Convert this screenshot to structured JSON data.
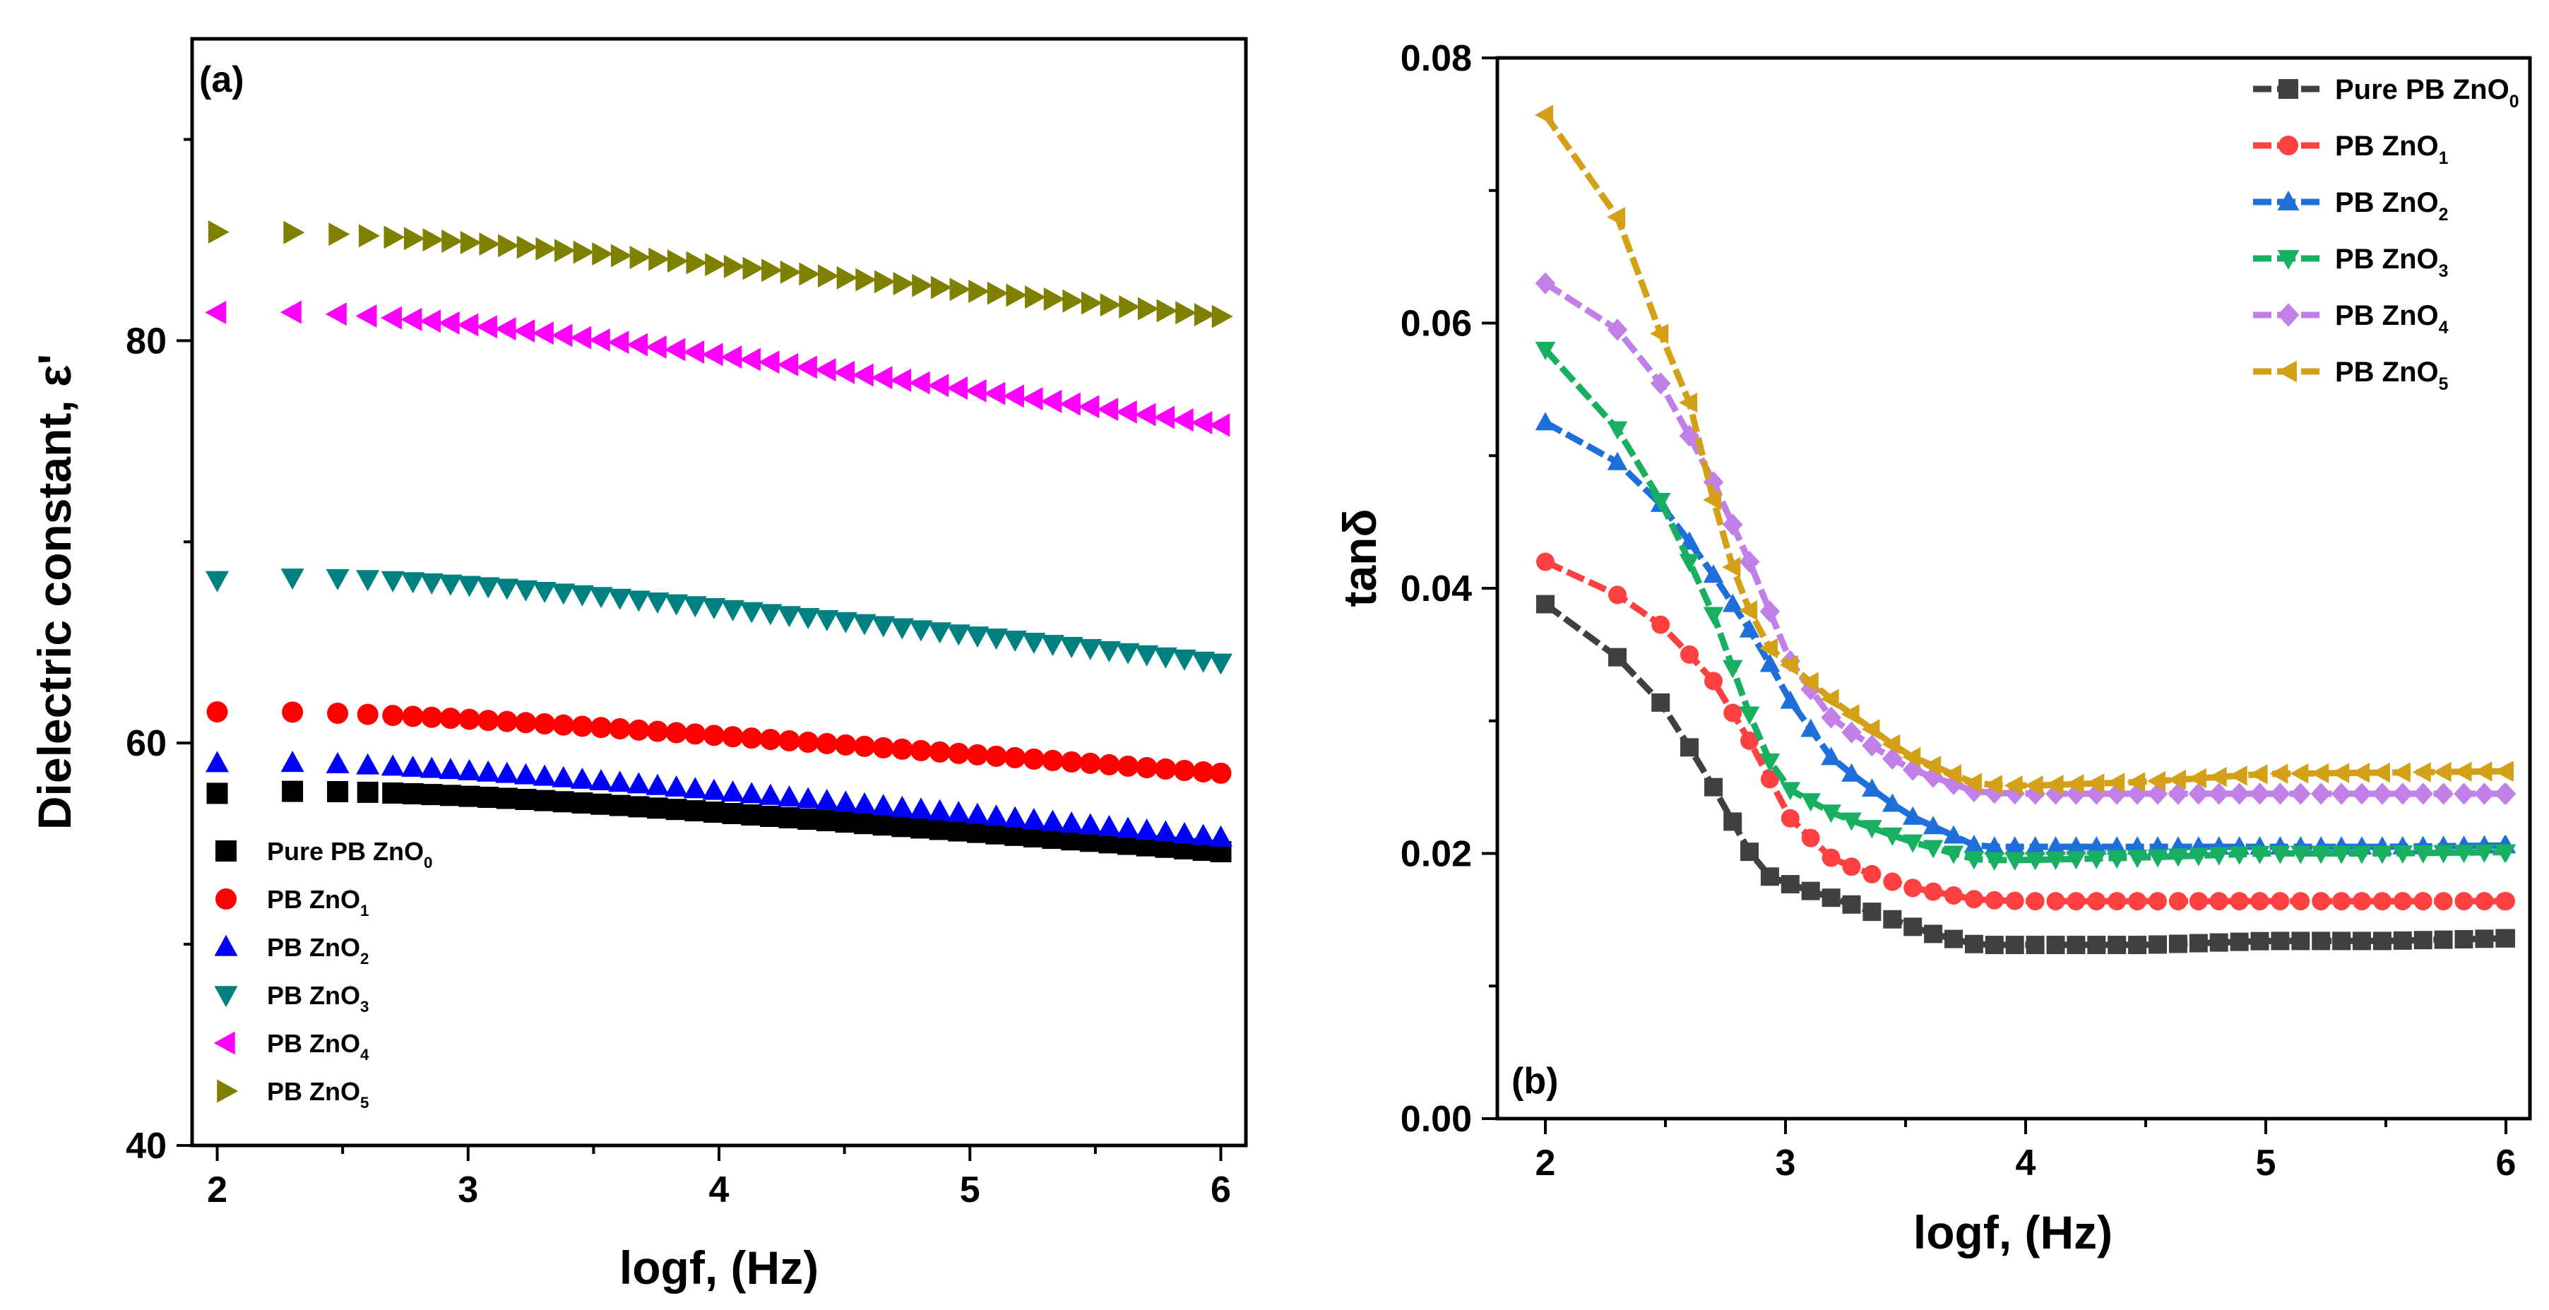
{
  "chart_data": [
    {
      "type": "scatter",
      "panel_label": "(a)",
      "xlabel": "logf, (Hz)",
      "ylabel": "Dielectric constant, ε'",
      "xlim": [
        1.9,
        6.1
      ],
      "ylim": [
        40,
        95
      ],
      "xticks": [
        2,
        3,
        4,
        5,
        6
      ],
      "yticks": [
        40,
        60,
        80
      ],
      "legend_position": "bottom-left",
      "series": [
        {
          "name": "Pure PB ZnO",
          "sub": "0",
          "marker": "square",
          "color": "#000000",
          "start": 58.6,
          "end": 54.6,
          "curve": 2.2
        },
        {
          "name": "PB ZnO",
          "sub": "1",
          "marker": "circle",
          "color": "#ff0000",
          "start": 62.3,
          "end": 58.5,
          "curve": 1.5
        },
        {
          "name": "PB ZnO",
          "sub": "2",
          "marker": "triangle-up",
          "color": "#0000ff",
          "start": 60.0,
          "end": 55.3,
          "curve": 2.0
        },
        {
          "name": "PB ZnO",
          "sub": "3",
          "marker": "triangle-down",
          "color": "#008080",
          "start": 69.6,
          "end": 64.0,
          "curve": 3.0
        },
        {
          "name": "PB ZnO",
          "sub": "4",
          "marker": "triangle-left",
          "color": "#ff00ff",
          "start": 82.9,
          "end": 75.8,
          "curve": 3.0
        },
        {
          "name": "PB ZnO",
          "sub": "5",
          "marker": "triangle-right",
          "color": "#808000",
          "start": 86.4,
          "end": 81.2,
          "curve": 2.0
        }
      ]
    },
    {
      "type": "line",
      "panel_label": "(b)",
      "xlabel": "logf, (Hz)",
      "ylabel": "tanδ",
      "xlim": [
        1.8,
        6.1
      ],
      "ylim": [
        0.0,
        0.08
      ],
      "xticks": [
        2,
        3,
        4,
        5,
        6
      ],
      "yticks": [
        0.0,
        0.02,
        0.04,
        0.06,
        0.08
      ],
      "ytick_labels": [
        "0.00",
        "0.02",
        "0.04",
        "0.06",
        "0.08"
      ],
      "legend_position": "top-right",
      "series": [
        {
          "name": "Pure PB ZnO",
          "sub": "0",
          "marker": "square",
          "color": "#404040",
          "x": [
            2.0,
            2.3,
            2.5,
            2.7,
            2.9,
            3.0,
            3.3,
            3.6,
            3.8,
            4.0,
            4.5,
            5.0,
            5.5,
            6.0
          ],
          "y": [
            0.0388,
            0.0348,
            0.031,
            0.025,
            0.0185,
            0.0178,
            0.016,
            0.014,
            0.0131,
            0.0131,
            0.0131,
            0.0134,
            0.0134,
            0.0136
          ]
        },
        {
          "name": "PB ZnO",
          "sub": "1",
          "marker": "circle",
          "color": "#ff4040",
          "x": [
            2.0,
            2.3,
            2.5,
            2.7,
            2.9,
            3.0,
            3.2,
            3.5,
            3.8,
            4.0,
            4.5,
            5.0,
            5.5,
            6.0
          ],
          "y": [
            0.042,
            0.0395,
            0.037,
            0.033,
            0.027,
            0.023,
            0.0195,
            0.0175,
            0.0165,
            0.0164,
            0.0164,
            0.0164,
            0.0164,
            0.0164
          ]
        },
        {
          "name": "PB ZnO",
          "sub": "2",
          "marker": "triangle-up",
          "color": "#1e6fd9",
          "x": [
            2.0,
            2.3,
            2.5,
            2.7,
            2.9,
            3.0,
            3.2,
            3.5,
            3.8,
            4.0,
            4.5,
            5.0,
            5.5,
            6.0
          ],
          "y": [
            0.0525,
            0.0495,
            0.046,
            0.041,
            0.0355,
            0.032,
            0.027,
            0.023,
            0.0205,
            0.0205,
            0.0205,
            0.0205,
            0.0205,
            0.0206
          ]
        },
        {
          "name": "PB ZnO",
          "sub": "3",
          "marker": "triangle-down",
          "color": "#18b060",
          "x": [
            2.0,
            2.3,
            2.5,
            2.7,
            2.9,
            3.0,
            3.2,
            3.5,
            3.8,
            4.0,
            4.5,
            5.0,
            5.5,
            6.0
          ],
          "y": [
            0.058,
            0.052,
            0.046,
            0.038,
            0.028,
            0.025,
            0.023,
            0.021,
            0.0195,
            0.0195,
            0.0197,
            0.02,
            0.02,
            0.0201
          ]
        },
        {
          "name": "PB ZnO",
          "sub": "4",
          "marker": "diamond",
          "color": "#c080e8",
          "x": [
            2.0,
            2.3,
            2.5,
            2.7,
            2.9,
            3.0,
            3.2,
            3.5,
            3.8,
            4.0,
            4.5,
            5.0,
            5.5,
            6.0
          ],
          "y": [
            0.063,
            0.0595,
            0.055,
            0.048,
            0.04,
            0.035,
            0.03,
            0.0265,
            0.0246,
            0.0245,
            0.0245,
            0.0245,
            0.0245,
            0.0245
          ]
        },
        {
          "name": "PB ZnO",
          "sub": "5",
          "marker": "triangle-left",
          "color": "#d4a017",
          "x": [
            2.0,
            2.15,
            2.3,
            2.45,
            2.6,
            2.75,
            2.9,
            3.0,
            3.2,
            3.5,
            3.8,
            4.0,
            4.5,
            5.0,
            5.5,
            6.0
          ],
          "y": [
            0.0757,
            0.072,
            0.068,
            0.0605,
            0.054,
            0.043,
            0.036,
            0.0345,
            0.0315,
            0.0275,
            0.0252,
            0.0251,
            0.0254,
            0.026,
            0.0261,
            0.0262
          ]
        }
      ]
    }
  ]
}
